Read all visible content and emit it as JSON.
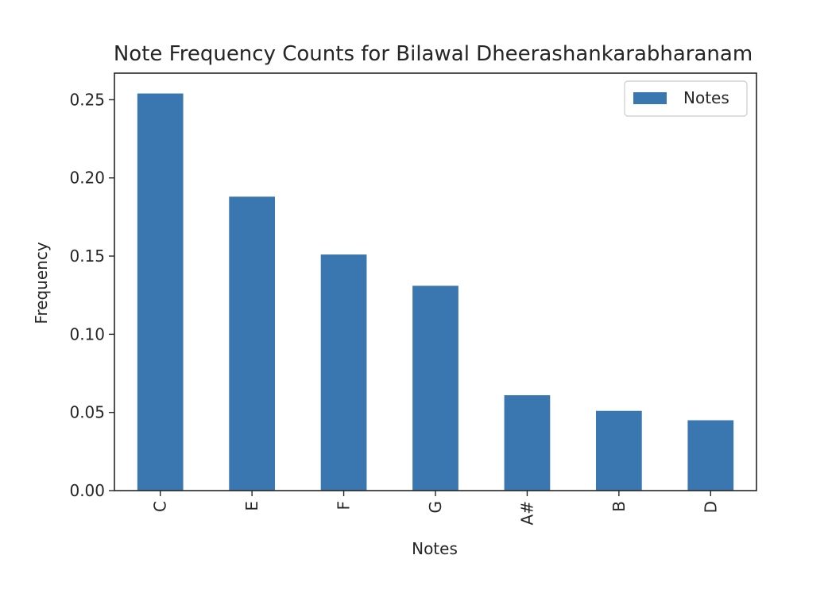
{
  "chart_data": {
    "type": "bar",
    "title": "Note Frequency Counts for Bilawal Dheerashankarabharanam",
    "xlabel": "Notes",
    "ylabel": "Frequency",
    "categories": [
      "C",
      "E",
      "F",
      "G",
      "A#",
      "B",
      "D"
    ],
    "series": [
      {
        "name": "Notes",
        "values": [
          0.254,
          0.188,
          0.151,
          0.131,
          0.061,
          0.051,
          0.045
        ],
        "color": "#3a76af"
      }
    ],
    "ylim": [
      0,
      0.267
    ],
    "yticks": [
      0.0,
      0.05,
      0.1,
      0.15,
      0.2,
      0.25
    ],
    "ytick_labels": [
      "0.00",
      "0.05",
      "0.10",
      "0.15",
      "0.20",
      "0.25"
    ],
    "x_tick_rotation": "vertical",
    "grid": false,
    "legend_position": "top-right"
  }
}
